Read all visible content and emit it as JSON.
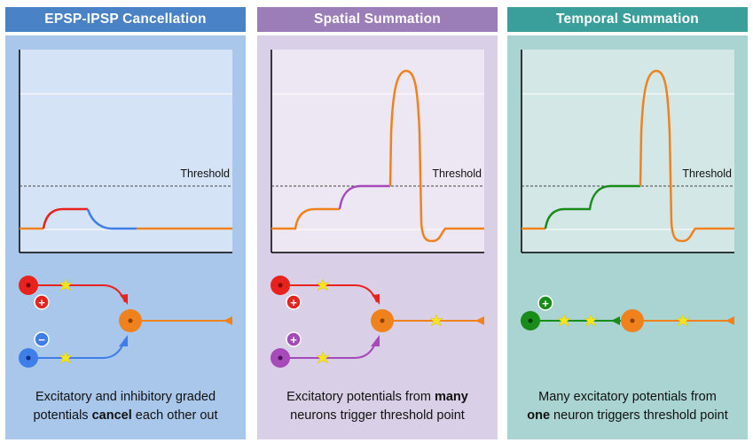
{
  "panels": [
    {
      "title": "EPSP-IPSP Cancellation",
      "threshold_label": "Threshold",
      "caption_line1": "Excitatory and inhibitory graded",
      "caption_line2_pre": "potentials ",
      "caption_line2_bold": "cancel",
      "caption_line2_post": " each other out",
      "colors": {
        "header": "#4a82c6",
        "body": "#a8c7ea",
        "graph_bg": "#d4e3f5"
      }
    },
    {
      "title": "Spatial Summation",
      "threshold_label": "Threshold",
      "caption_line1_pre": "Excitatory potentials from ",
      "caption_line1_bold": "many",
      "caption_line2": "neurons trigger threshold point",
      "colors": {
        "header": "#9b7eb8",
        "body": "#d9cfe6",
        "graph_bg": "#ece7f2"
      }
    },
    {
      "title": "Temporal Summation",
      "threshold_label": "Threshold",
      "caption_line1": "Many excitatory potentials from",
      "caption_line2_bold": "one",
      "caption_line2_post": " neuron triggers threshold point",
      "colors": {
        "header": "#3a9e9a",
        "body": "#a9d4d1",
        "graph_bg": "#d3e8e6"
      }
    }
  ],
  "signs": {
    "plus": "+",
    "minus": "−"
  },
  "colors": {
    "excitatory_red": "#e8231e",
    "inhibitory_blue": "#3f7de8",
    "purple": "#a54ab8",
    "green": "#1a8c1a",
    "axon_orange": "#f0821e",
    "synapse_spark": "#f6e51d",
    "threshold_line": "#444444"
  }
}
